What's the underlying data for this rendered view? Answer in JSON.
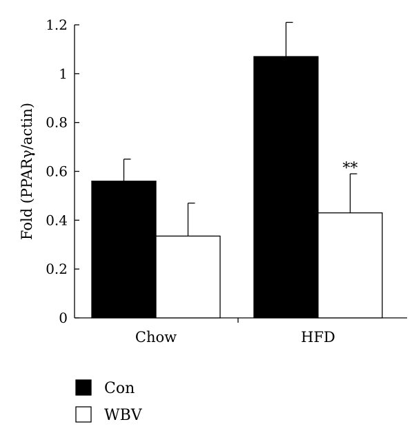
{
  "chart_data": {
    "type": "bar",
    "title": "",
    "xlabel": "",
    "ylabel": "Fold (PPARγ/actin)",
    "ylim": [
      0,
      1.2
    ],
    "yticks": [
      0,
      0.2,
      0.4,
      0.6,
      0.8,
      1,
      1.2
    ],
    "ytick_labels": [
      "0",
      "0.2",
      "0.4",
      "0.6",
      "0.8",
      "1",
      "1.2"
    ],
    "categories": [
      "Chow",
      "HFD"
    ],
    "series": [
      {
        "name": "Con",
        "values": [
          0.56,
          1.07
        ],
        "errors": [
          0.09,
          0.14
        ],
        "color": "#000000"
      },
      {
        "name": "WBV",
        "values": [
          0.335,
          0.43
        ],
        "errors": [
          0.135,
          0.16
        ],
        "color": "#ffffff"
      }
    ],
    "annotations": [
      {
        "text": "**",
        "category": "HFD",
        "series": "WBV"
      }
    ],
    "legend_position": "bottom-left",
    "grid": false,
    "error_bars": "upper"
  }
}
